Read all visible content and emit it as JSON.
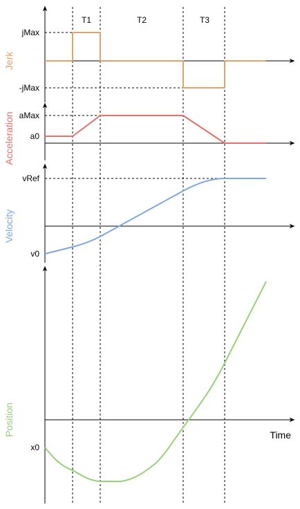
{
  "phases": {
    "t1": "T1",
    "t2": "T2",
    "t3": "T3"
  },
  "time_label": "Time",
  "colors": {
    "jerk": "#DFA26A",
    "acceleration": "#E46F6B",
    "velocity": "#7EA6E0",
    "position": "#97D077"
  },
  "panels": {
    "jerk": {
      "title": "Jerk",
      "ticks": {
        "max": "jMax",
        "min": "-jMax"
      }
    },
    "acceleration": {
      "title": "Acceleration",
      "ticks": {
        "max": "aMax",
        "start": "a0"
      }
    },
    "velocity": {
      "title": "Velocity",
      "ticks": {
        "ref": "vRef",
        "start": "v0"
      }
    },
    "position": {
      "title": "Position",
      "ticks": {
        "start": "x0"
      }
    }
  }
}
